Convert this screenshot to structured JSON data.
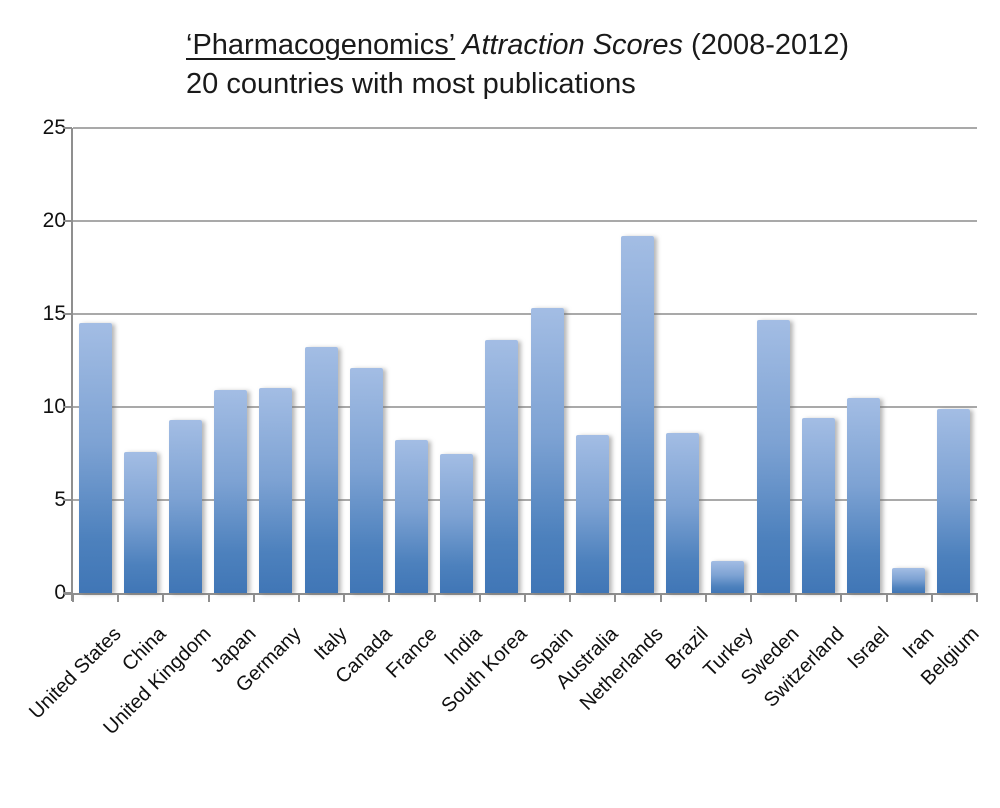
{
  "title": {
    "part_quoted": "‘Pharmacogenomics’",
    "part_italic": " Attraction Scores ",
    "part_plain": "(2008-2012)",
    "subtitle": "20 countries with most publications"
  },
  "chart_data": {
    "type": "bar",
    "title": "‘Pharmacogenomics’ Attraction Scores (2008-2012)",
    "subtitle": "20 countries with most publications",
    "categories": [
      "United States",
      "China",
      "United Kingdom",
      "Japan",
      "Germany",
      "Italy",
      "Canada",
      "France",
      "India",
      "South Korea",
      "Spain",
      "Australia",
      "Netherlands",
      "Brazil",
      "Turkey",
      "Sweden",
      "Switzerland",
      "Israel",
      "Iran",
      "Belgium"
    ],
    "values": [
      14.5,
      7.6,
      9.3,
      10.9,
      11.0,
      13.2,
      12.1,
      8.2,
      7.5,
      13.6,
      15.3,
      8.5,
      19.2,
      8.6,
      1.7,
      14.7,
      9.4,
      10.5,
      1.35,
      9.9
    ],
    "xlabel": "",
    "ylabel": "",
    "ylim": [
      0,
      25
    ],
    "yticks": [
      0,
      5,
      10,
      15,
      20,
      25
    ],
    "grid": "horizontal",
    "legend": "none",
    "x_label_rotation_deg": 45,
    "colors": {
      "bar_gradient_top": "#a3bde4",
      "bar_gradient_bottom": "#4076b6",
      "axis": "#8f8f8f",
      "gridline": "#a9a9a9",
      "text": "#101010"
    }
  }
}
